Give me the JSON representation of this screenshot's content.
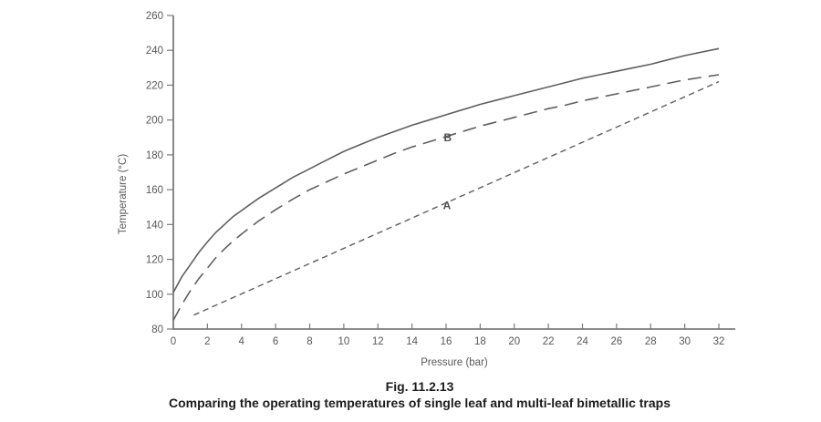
{
  "figure": {
    "number_line": "Fig. 11.2.13",
    "caption_line": "Comparing the operating temperatures of single leaf and multi-leaf bimetallic traps"
  },
  "chart_data": {
    "type": "line",
    "title": "",
    "xlabel": "Pressure (bar)",
    "ylabel": "Temperature (°C)",
    "xlim": [
      0,
      32
    ],
    "ylim": [
      80,
      260
    ],
    "x_ticks": [
      0,
      2,
      4,
      6,
      8,
      10,
      12,
      14,
      16,
      18,
      20,
      22,
      24,
      26,
      28,
      30,
      32
    ],
    "y_ticks": [
      80,
      100,
      120,
      140,
      160,
      180,
      200,
      220,
      240,
      260
    ],
    "grid": false,
    "legend_position": "none",
    "series": [
      {
        "name": "steam-saturation-curve",
        "label": "",
        "line_style": "solid",
        "points": [
          [
            0,
            101
          ],
          [
            0.5,
            110
          ],
          [
            1,
            117
          ],
          [
            1.5,
            124
          ],
          [
            2,
            130
          ],
          [
            2.5,
            135.5
          ],
          [
            3,
            140
          ],
          [
            3.5,
            144.5
          ],
          [
            4,
            148
          ],
          [
            5,
            155
          ],
          [
            6,
            161
          ],
          [
            7,
            167
          ],
          [
            8,
            172
          ],
          [
            9,
            177
          ],
          [
            10,
            182
          ],
          [
            11,
            186
          ],
          [
            12,
            190
          ],
          [
            13,
            193.5
          ],
          [
            14,
            197
          ],
          [
            15,
            200
          ],
          [
            16,
            203
          ],
          [
            17,
            206
          ],
          [
            18,
            209
          ],
          [
            19,
            211.5
          ],
          [
            20,
            214
          ],
          [
            21,
            216.5
          ],
          [
            22,
            219
          ],
          [
            23,
            221.5
          ],
          [
            24,
            224
          ],
          [
            25,
            226
          ],
          [
            26,
            228
          ],
          [
            27,
            230
          ],
          [
            28,
            232
          ],
          [
            29,
            234.5
          ],
          [
            30,
            237
          ],
          [
            31,
            239
          ],
          [
            32,
            241
          ]
        ]
      },
      {
        "name": "multi-leaf-trap-curve-B",
        "label": "B",
        "line_style": "long-dash",
        "points": [
          [
            0,
            85
          ],
          [
            0.5,
            94
          ],
          [
            1,
            102
          ],
          [
            1.5,
            109
          ],
          [
            2,
            115
          ],
          [
            2.5,
            121
          ],
          [
            3,
            126
          ],
          [
            3.5,
            130.5
          ],
          [
            4,
            134.5
          ],
          [
            5,
            142
          ],
          [
            6,
            148.5
          ],
          [
            7,
            154.5
          ],
          [
            8,
            160
          ],
          [
            9,
            164.5
          ],
          [
            10,
            169
          ],
          [
            11,
            173
          ],
          [
            12,
            177
          ],
          [
            13,
            181
          ],
          [
            14,
            184.5
          ],
          [
            15,
            187.5
          ],
          [
            16,
            190.5
          ],
          [
            17,
            193.5
          ],
          [
            18,
            196.5
          ],
          [
            19,
            199
          ],
          [
            20,
            201.5
          ],
          [
            21,
            204
          ],
          [
            22,
            206.5
          ],
          [
            23,
            208.5
          ],
          [
            24,
            211
          ],
          [
            25,
            213
          ],
          [
            26,
            215
          ],
          [
            27,
            217
          ],
          [
            28,
            219
          ],
          [
            29,
            221
          ],
          [
            30,
            223
          ],
          [
            31,
            224.5
          ],
          [
            32,
            226
          ]
        ]
      },
      {
        "name": "single-leaf-trap-line-A",
        "label": "A",
        "line_style": "short-dash",
        "points": [
          [
            1.2,
            88
          ],
          [
            32,
            222
          ]
        ]
      }
    ],
    "annotations": [
      {
        "text": "B",
        "x": 16.1,
        "y": 190
      },
      {
        "text": "A",
        "x": 16.05,
        "y": 151
      }
    ],
    "colors": {
      "axis": "#7a7b7d",
      "curves": "#5e5f61",
      "tick_labels": "#58585a",
      "axis_titles": "#58585a",
      "series_labels": "#515154",
      "caption_text": "#1c1c1c"
    }
  }
}
